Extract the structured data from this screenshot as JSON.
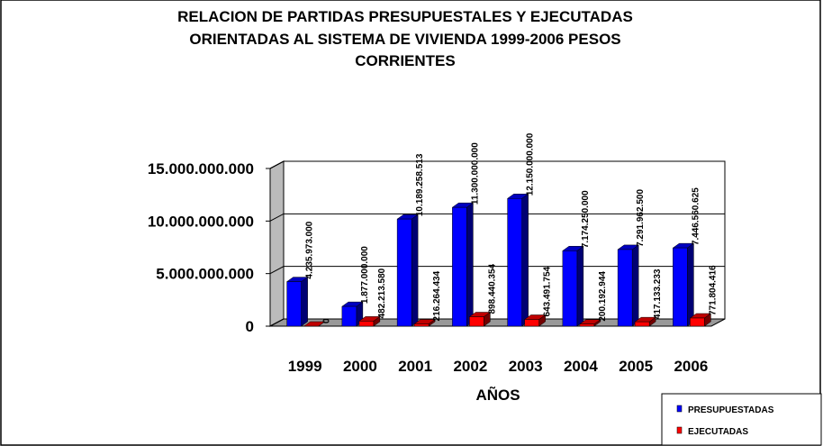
{
  "chart_data": {
    "type": "bar3d",
    "title": [
      "RELACION DE PARTIDAS PRESUPUESTALES Y EJECUTADAS",
      "ORIENTADAS AL SISTEMA DE VIVIENDA 1999-2006 PESOS",
      "CORRIENTES"
    ],
    "x_label": "AÑOS",
    "categories": [
      "1999",
      "2000",
      "2001",
      "2002",
      "2003",
      "2004",
      "2005",
      "2006"
    ],
    "series": [
      {
        "name": "PRESUPUESTADAS",
        "color": "#0000ff",
        "values": [
          4235973000,
          1877000000,
          10189258513,
          11300000000,
          12150000000,
          7174250000,
          7291962500,
          7446560625
        ],
        "value_labels": [
          "4.235.973.000",
          "1.877.000.000",
          "10.189.258.513",
          "11.300.000.000",
          "12.150.000.000",
          "7.174.250.000",
          "7.291.962.500",
          "7.446.560.625"
        ]
      },
      {
        "name": "EJECUTADAS",
        "color": "#ff0000",
        "values": [
          0,
          482213580,
          216264434,
          898440354,
          643491754,
          200192944,
          417133233,
          771804416
        ],
        "value_labels": [
          "0",
          "482.213.580",
          "216.264.434",
          "898.440.354",
          "643.491.754",
          "200.192.944",
          "417.133.233",
          "771.804.416"
        ]
      }
    ],
    "ylim": [
      0,
      15000000000
    ],
    "yticks": [
      0,
      {
        "value": 5000000000,
        "label": "5.000.000.000"
      },
      {
        "value": 10000000000,
        "label": "10.000.000.000"
      },
      {
        "value": 15000000000,
        "label": "15.000.000.000"
      }
    ],
    "grid": true,
    "legend": "lower right"
  }
}
